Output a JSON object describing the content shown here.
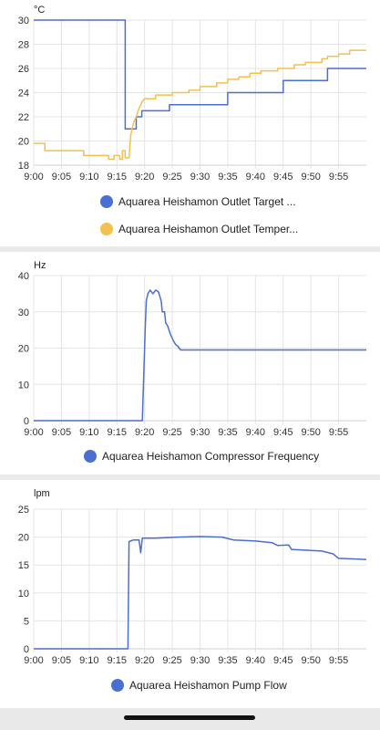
{
  "colors": {
    "blue": "#4a6fd0",
    "yellow": "#f2c14f",
    "grid": "#e4e4e4",
    "axis": "#cfcfcf"
  },
  "icons": {
    "legend_marker": "circle-dot-icon"
  },
  "chart_data": [
    {
      "type": "line",
      "unit_label": "°C",
      "x_ticks": [
        "9:00",
        "9:05",
        "9:10",
        "9:15",
        "9:20",
        "9:25",
        "9:30",
        "9:35",
        "9:40",
        "9:45",
        "9:50",
        "9:55"
      ],
      "y_ticks": [
        "18",
        "20",
        "22",
        "24",
        "26",
        "28",
        "30"
      ],
      "ylim": [
        18,
        30
      ],
      "xlim_minutes": [
        0,
        60
      ],
      "series": [
        {
          "name": "Aquarea Heishamon Outlet Target ...",
          "color": "#4a6fd0",
          "points": [
            [
              0,
              30
            ],
            [
              16.5,
              30
            ],
            [
              16.5,
              21
            ],
            [
              18.5,
              21
            ],
            [
              18.5,
              22
            ],
            [
              19.5,
              22
            ],
            [
              19.5,
              22.5
            ],
            [
              24.5,
              22.5
            ],
            [
              24.5,
              23
            ],
            [
              35,
              23
            ],
            [
              35,
              24
            ],
            [
              45,
              24
            ],
            [
              45,
              25
            ],
            [
              53,
              25
            ],
            [
              53,
              26
            ],
            [
              60,
              26
            ]
          ]
        },
        {
          "name": "Aquarea Heishamon Outlet Temper...",
          "color": "#f2c14f",
          "points": [
            [
              0,
              19.8
            ],
            [
              2,
              19.8
            ],
            [
              2,
              19.2
            ],
            [
              9,
              19.2
            ],
            [
              9,
              18.8
            ],
            [
              13.5,
              18.8
            ],
            [
              13.5,
              18.5
            ],
            [
              14.5,
              18.5
            ],
            [
              14.5,
              18.8
            ],
            [
              15.5,
              18.8
            ],
            [
              15.5,
              18.5
            ],
            [
              16,
              18.5
            ],
            [
              16,
              19.2
            ],
            [
              16.5,
              19.2
            ],
            [
              16.5,
              18.6
            ],
            [
              17.2,
              18.6
            ],
            [
              17.5,
              20.5
            ],
            [
              18,
              21.5
            ],
            [
              18.5,
              22
            ],
            [
              19,
              22.7
            ],
            [
              19.5,
              23.2
            ],
            [
              20,
              23.5
            ],
            [
              22,
              23.5
            ],
            [
              22,
              23.8
            ],
            [
              25,
              23.8
            ],
            [
              25,
              24
            ],
            [
              28,
              24
            ],
            [
              28,
              24.2
            ],
            [
              30,
              24.2
            ],
            [
              30,
              24.5
            ],
            [
              33,
              24.5
            ],
            [
              33,
              24.8
            ],
            [
              35,
              24.8
            ],
            [
              35,
              25.1
            ],
            [
              37,
              25.1
            ],
            [
              37,
              25.3
            ],
            [
              39,
              25.3
            ],
            [
              39,
              25.6
            ],
            [
              41,
              25.6
            ],
            [
              41,
              25.8
            ],
            [
              44,
              25.8
            ],
            [
              44,
              26
            ],
            [
              47,
              26
            ],
            [
              47,
              26.3
            ],
            [
              49,
              26.3
            ],
            [
              49,
              26.5
            ],
            [
              52,
              26.5
            ],
            [
              52,
              26.8
            ],
            [
              53,
              26.8
            ],
            [
              53,
              27
            ],
            [
              55,
              27
            ],
            [
              55,
              27.2
            ],
            [
              57,
              27.2
            ],
            [
              57,
              27.5
            ],
            [
              60,
              27.5
            ]
          ]
        }
      ]
    },
    {
      "type": "line",
      "unit_label": "Hz",
      "x_ticks": [
        "9:00",
        "9:05",
        "9:10",
        "9:15",
        "9:20",
        "9:25",
        "9:30",
        "9:35",
        "9:40",
        "9:45",
        "9:50",
        "9:55"
      ],
      "y_ticks": [
        "0",
        "10",
        "20",
        "30",
        "40"
      ],
      "ylim": [
        0,
        40
      ],
      "xlim_minutes": [
        0,
        60
      ],
      "series": [
        {
          "name": "Aquarea Heishamon Compressor Frequency",
          "color": "#4a6fd0",
          "points": [
            [
              0,
              0
            ],
            [
              19.6,
              0
            ],
            [
              20.1,
              25
            ],
            [
              20.3,
              33
            ],
            [
              20.6,
              35
            ],
            [
              21,
              36
            ],
            [
              21.5,
              35
            ],
            [
              22,
              36
            ],
            [
              22.5,
              35.5
            ],
            [
              23,
              33
            ],
            [
              23.2,
              30
            ],
            [
              23.6,
              30
            ],
            [
              23.8,
              27
            ],
            [
              24.2,
              26
            ],
            [
              24.6,
              24
            ],
            [
              25.2,
              22
            ],
            [
              25.6,
              21
            ],
            [
              26,
              20.5
            ],
            [
              26.5,
              19.5
            ],
            [
              60,
              19.5
            ]
          ]
        }
      ]
    },
    {
      "type": "line",
      "unit_label": "lpm",
      "x_ticks": [
        "9:00",
        "9:05",
        "9:10",
        "9:15",
        "9:20",
        "9:25",
        "9:30",
        "9:35",
        "9:40",
        "9:45",
        "9:50",
        "9:55"
      ],
      "y_ticks": [
        "0",
        "5",
        "10",
        "15",
        "20",
        "25"
      ],
      "ylim": [
        0,
        25
      ],
      "xlim_minutes": [
        0,
        60
      ],
      "series": [
        {
          "name": "Aquarea Heishamon Pump Flow",
          "color": "#4a6fd0",
          "points": [
            [
              0,
              0
            ],
            [
              17,
              0
            ],
            [
              17.2,
              19.2
            ],
            [
              18,
              19.5
            ],
            [
              19,
              19.5
            ],
            [
              19.3,
              17.2
            ],
            [
              19.6,
              19.8
            ],
            [
              22,
              19.8
            ],
            [
              26,
              20
            ],
            [
              30,
              20.1
            ],
            [
              34,
              20
            ],
            [
              36,
              19.5
            ],
            [
              40,
              19.3
            ],
            [
              43,
              19
            ],
            [
              44,
              18.5
            ],
            [
              46,
              18.6
            ],
            [
              46.5,
              17.8
            ],
            [
              50,
              17.6
            ],
            [
              52,
              17.5
            ],
            [
              54,
              17
            ],
            [
              55,
              16.2
            ],
            [
              60,
              16
            ]
          ]
        }
      ]
    }
  ]
}
